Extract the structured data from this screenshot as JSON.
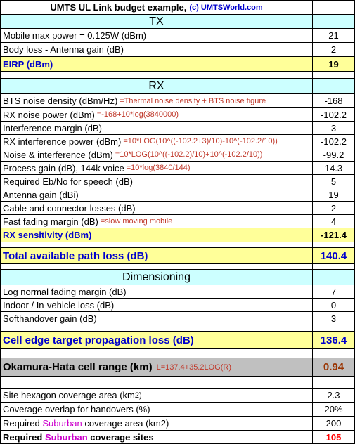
{
  "header": {
    "title": "UMTS UL Link budget example,",
    "site": "(c) UMTSWorld.com"
  },
  "tx": {
    "heading": "TX",
    "rows": [
      {
        "label": "Mobile max power = 0.125W (dBm)",
        "value": "21"
      },
      {
        "label": "Body loss - Antenna gain (dB)",
        "value": "2"
      }
    ],
    "eirp": {
      "label": "EIRP (dBm)",
      "value": "19"
    }
  },
  "rx": {
    "heading": "RX",
    "rows": [
      {
        "label": "BTS noise density (dBm/Hz)",
        "note": "=Thermal noise density + BTS noise figure",
        "value": "-168"
      },
      {
        "label": "RX noise power (dBm)",
        "note": "=-168+10*log(3840000)",
        "value": "-102.2"
      },
      {
        "label": "Interference margin (dB)",
        "note": "",
        "value": "3"
      },
      {
        "label": "RX interference power (dBm)",
        "note": "=10*LOG(10^((-102.2+3)/10)-10^(-102.2/10))",
        "value": "-102.2"
      },
      {
        "label": "Noise & interference (dBm)",
        "note": "=10*LOG(10^((-102.2)/10)+10^(-102.2/10))",
        "value": "-99.2"
      },
      {
        "label": "Process gain (dB), 144k voice",
        "note": "=10*log(3840/144)",
        "value": "14.3"
      },
      {
        "label": "Required Eb/No for speech (dB)",
        "note": "",
        "value": "5"
      },
      {
        "label": "Antenna gain (dBi)",
        "note": "",
        "value": "19"
      },
      {
        "label": "Cable and connector losses (dB)",
        "note": "",
        "value": "2"
      },
      {
        "label": "Fast fading margin (dB)",
        "note": "=slow moving mobile",
        "value": "4"
      }
    ],
    "sensitivity": {
      "label": "RX sensitivity (dBm)",
      "value": "-121.4"
    }
  },
  "path_loss": {
    "label": "Total available path loss (dB)",
    "value": "140.4"
  },
  "dimensioning": {
    "heading": "Dimensioning",
    "rows": [
      {
        "label": "Log normal fading margin (dB)",
        "value": "7"
      },
      {
        "label": "Indoor / In-vehicle loss (dB)",
        "value": "0"
      },
      {
        "label": "Softhandover gain (dB)",
        "value": "3"
      }
    ]
  },
  "cell_edge": {
    "label": "Cell edge target propagation loss (dB)",
    "value": "136.4"
  },
  "okamura": {
    "label": "Okamura-Hata cell range (km)",
    "note": "L=137.4+35.2LOG(R)",
    "value": "0.94"
  },
  "coverage": {
    "hexagon": {
      "label": "Site hexagon coverage area (km",
      "sup": "2)",
      "value": "2.3"
    },
    "overlap": {
      "label": "Coverage overlap for handovers (%)",
      "value": "20%"
    },
    "area": {
      "label_pre": "Required ",
      "label_em": "Suburban",
      "label_post": " coverage area (km2)",
      "value": "200"
    },
    "sites": {
      "label_pre": "Required ",
      "label_em": "Suburban",
      "label_post": " coverage sites",
      "value": "105"
    }
  },
  "colors": {
    "cyan": "#ccffff",
    "yellow": "#ffff99",
    "grey": "#c0c0c0",
    "blue": "#0000cc",
    "red": "#ff0000",
    "magenta": "#cc00cc"
  }
}
